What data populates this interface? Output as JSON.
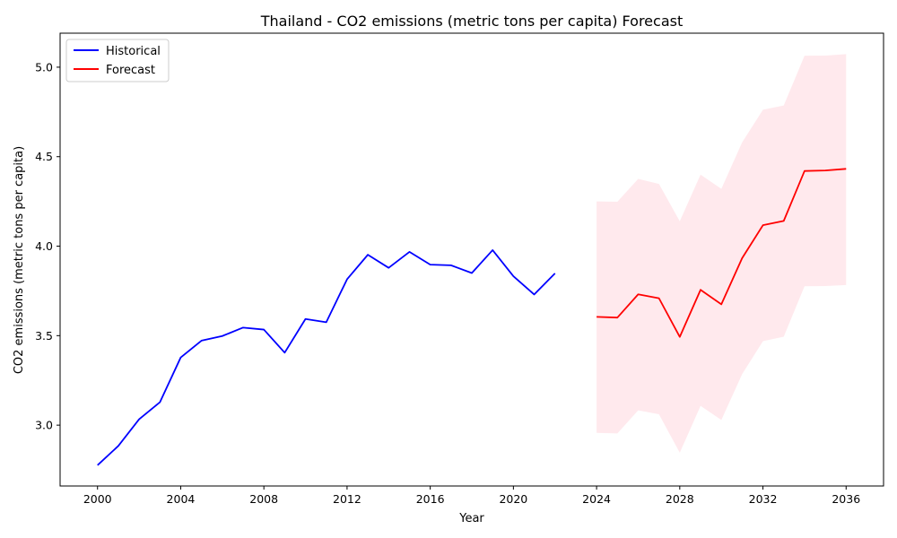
{
  "chart_data": {
    "type": "line",
    "title": "Thailand - CO2 emissions (metric tons per capita) Forecast",
    "xlabel": "Year",
    "ylabel": "CO2 emissions (metric tons per capita)",
    "xlim": [
      1998.2,
      2037.8
    ],
    "ylim": [
      2.66,
      5.19
    ],
    "xticks": [
      2000,
      2004,
      2008,
      2012,
      2016,
      2020,
      2024,
      2028,
      2032,
      2036
    ],
    "yticks": [
      3.0,
      3.5,
      4.0,
      4.5,
      5.0
    ],
    "legend_position": "top-left",
    "series": [
      {
        "name": "Historical",
        "color": "#0000ff",
        "x": [
          2000,
          2001,
          2002,
          2003,
          2004,
          2005,
          2006,
          2007,
          2008,
          2009,
          2010,
          2011,
          2012,
          2013,
          2014,
          2015,
          2016,
          2017,
          2018,
          2019,
          2020,
          2021,
          2022
        ],
        "y": [
          2.776,
          2.884,
          3.033,
          3.128,
          3.378,
          3.472,
          3.498,
          3.545,
          3.534,
          3.405,
          3.593,
          3.575,
          3.815,
          3.952,
          3.879,
          3.968,
          3.897,
          3.893,
          3.85,
          3.978,
          3.832,
          3.73,
          3.848
        ]
      },
      {
        "name": "Forecast",
        "color": "#ff0000",
        "x": [
          2024,
          2025,
          2026,
          2027,
          2028,
          2029,
          2030,
          2031,
          2032,
          2033,
          2034,
          2035,
          2036
        ],
        "y": [
          3.605,
          3.601,
          3.731,
          3.709,
          3.493,
          3.756,
          3.675,
          3.933,
          4.117,
          4.141,
          4.42,
          4.423,
          4.432
        ],
        "lower": [
          2.957,
          2.954,
          3.083,
          3.061,
          2.846,
          3.108,
          3.029,
          3.285,
          3.469,
          3.494,
          3.776,
          3.777,
          3.783
        ],
        "upper": [
          4.25,
          4.248,
          4.376,
          4.348,
          4.139,
          4.4,
          4.32,
          4.58,
          4.762,
          4.786,
          5.064,
          5.065,
          5.073
        ],
        "band_color": "#ffc0cb"
      }
    ]
  }
}
